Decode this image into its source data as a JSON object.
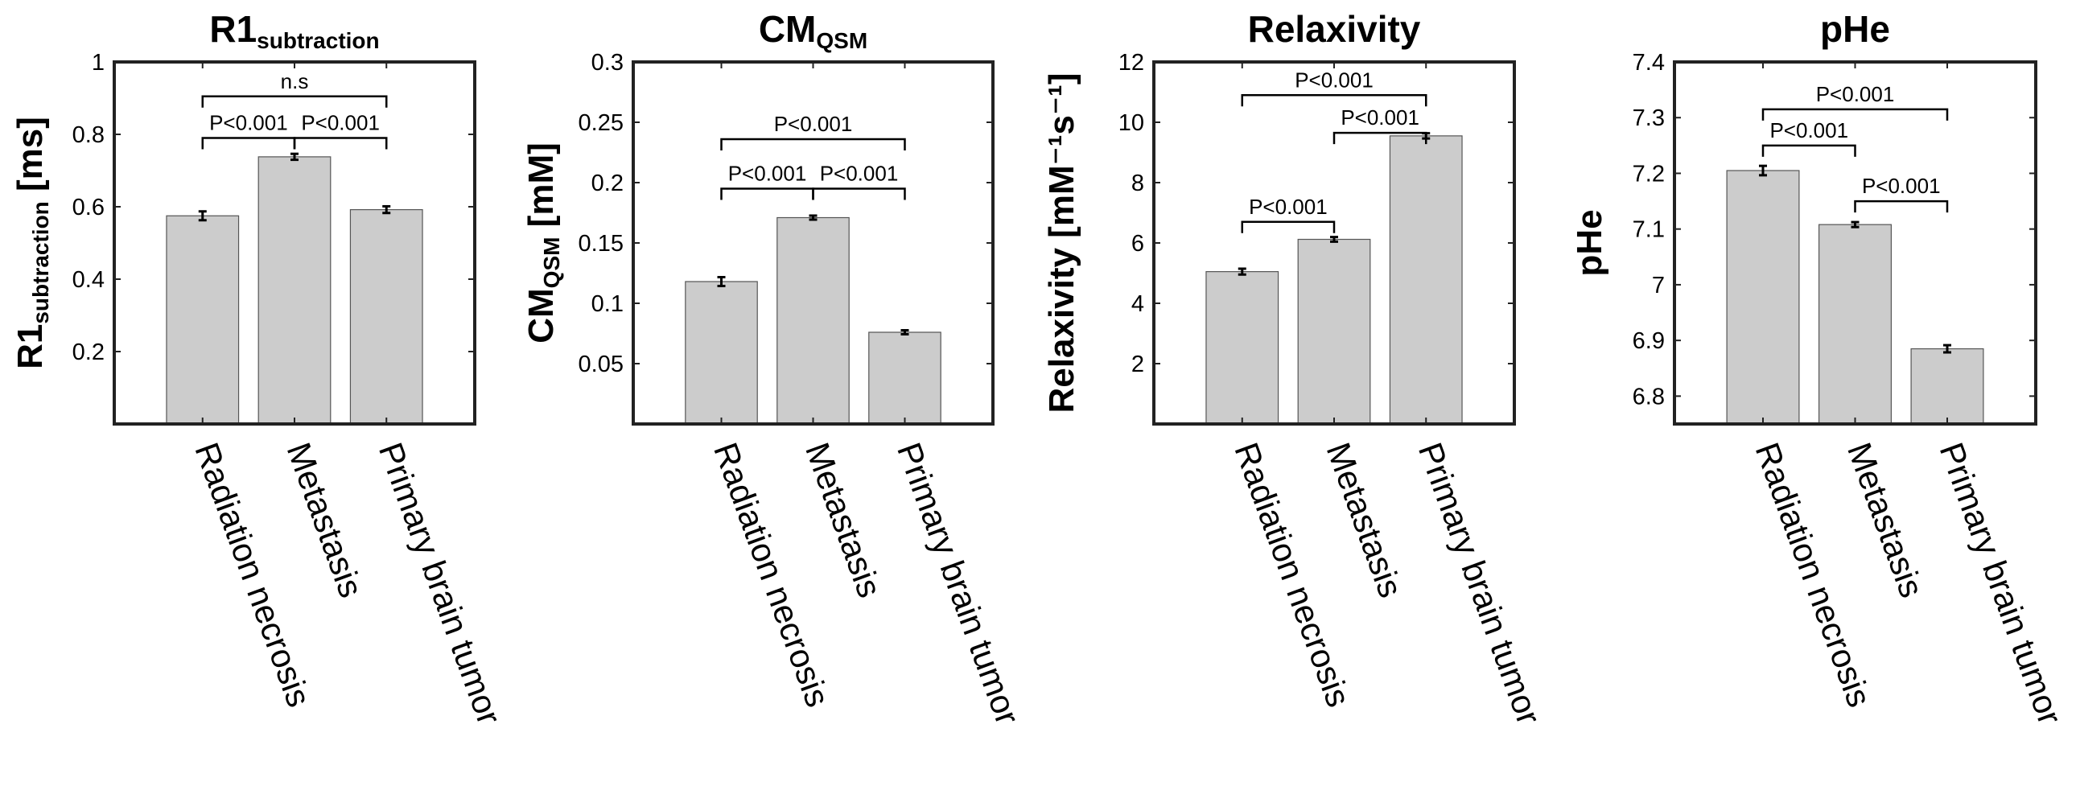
{
  "figure": {
    "bar_color": "#cccccc",
    "bar_edge_color": "#555555",
    "axis_color": "#222222",
    "text_color": "#000000"
  },
  "chart_data": [
    {
      "id": "r1",
      "type": "bar",
      "title": "R1",
      "title_sub": "subtraction",
      "ylabel": "R1",
      "ylabel_sub": "subtraction",
      "ylabel_suffix": " [ms]",
      "categories": [
        "Radiation necrosis",
        "Metastasis",
        "Primary brain tumor"
      ],
      "values": [
        0.575,
        0.738,
        0.592
      ],
      "errors": [
        0.01,
        0.006,
        0.007
      ],
      "ylim": [
        0,
        1
      ],
      "yticks": [
        0.2,
        0.4,
        0.6,
        0.8,
        1
      ],
      "ytick_labels": [
        "0.2",
        "0.4",
        "0.6",
        "0.8",
        "1"
      ],
      "annotations": [
        {
          "from": 0,
          "to": 1,
          "y": 0.79,
          "label": "P<0.001"
        },
        {
          "from": 1,
          "to": 2,
          "y": 0.79,
          "label": "P<0.001"
        },
        {
          "from": 0,
          "to": 2,
          "y": 0.905,
          "label": "n.s"
        }
      ]
    },
    {
      "id": "cm",
      "type": "bar",
      "title": "CM",
      "title_sub": "QSM",
      "ylabel": "CM",
      "ylabel_sub": "QSM",
      "ylabel_suffix": " [mM]",
      "categories": [
        "Radiation necrosis",
        "Metastasis",
        "Primary brain tumor"
      ],
      "values": [
        0.118,
        0.171,
        0.076
      ],
      "errors": [
        0.003,
        0.001,
        0.001
      ],
      "ylim": [
        0,
        0.3
      ],
      "yticks": [
        0.05,
        0.1,
        0.15,
        0.2,
        0.25,
        0.3
      ],
      "ytick_labels": [
        "0.05",
        "0.1",
        "0.15",
        "0.2",
        "0.25",
        "0.3"
      ],
      "annotations": [
        {
          "from": 0,
          "to": 1,
          "y": 0.195,
          "label": "P<0.001"
        },
        {
          "from": 1,
          "to": 2,
          "y": 0.195,
          "label": "P<0.001"
        },
        {
          "from": 0,
          "to": 2,
          "y": 0.236,
          "label": "P<0.001"
        }
      ]
    },
    {
      "id": "relax",
      "type": "bar",
      "title": "Relaxivity",
      "ylabel": "Relaxivity [mM⁻¹s⁻¹]",
      "categories": [
        "Radiation necrosis",
        "Metastasis",
        "Primary brain tumor"
      ],
      "values": [
        5.05,
        6.12,
        9.55
      ],
      "errors": [
        0.07,
        0.05,
        0.06
      ],
      "ylim": [
        0,
        12
      ],
      "yticks": [
        2,
        4,
        6,
        8,
        10,
        12
      ],
      "ytick_labels": [
        "2",
        "4",
        "6",
        "8",
        "10",
        "12"
      ],
      "annotations": [
        {
          "from": 0,
          "to": 1,
          "y": 6.7,
          "label": "P<0.001"
        },
        {
          "from": 1,
          "to": 2,
          "y": 9.65,
          "label": "P<0.001"
        },
        {
          "from": 0,
          "to": 2,
          "y": 10.9,
          "label": "P<0.001"
        }
      ]
    },
    {
      "id": "phe",
      "type": "bar",
      "title": "pHe",
      "ylabel": "pHe",
      "categories": [
        "Radiation necrosis",
        "Metastasis",
        "Primary brain tumor"
      ],
      "values": [
        7.205,
        7.108,
        6.885
      ],
      "errors": [
        0.007,
        0.003,
        0.005
      ],
      "ylim": [
        6.75,
        7.4
      ],
      "yticks": [
        6.8,
        6.9,
        7,
        7.1,
        7.2,
        7.3,
        7.4
      ],
      "ytick_labels": [
        "6.8",
        "6.9",
        "7",
        "7.1",
        "7.2",
        "7.3",
        "7.4"
      ],
      "annotations": [
        {
          "from": 0,
          "to": 1,
          "y": 7.25,
          "label": "P<0.001"
        },
        {
          "from": 1,
          "to": 2,
          "y": 7.15,
          "label": "P<0.001"
        },
        {
          "from": 0,
          "to": 2,
          "y": 7.315,
          "label": "P<0.001"
        }
      ]
    }
  ]
}
